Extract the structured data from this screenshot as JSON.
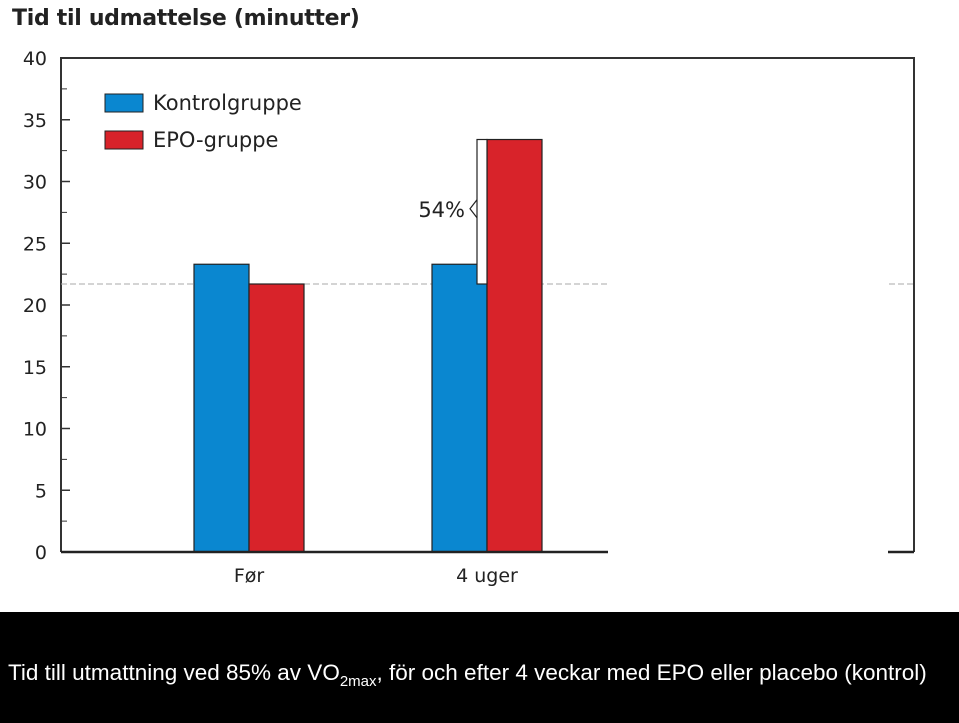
{
  "chart_data": {
    "type": "bar",
    "title": "Tid til udmattelse (minutter)",
    "categories": [
      "Før",
      "4 uger"
    ],
    "series": [
      {
        "name": "Kontrolgruppe",
        "color": "#0a87d0",
        "values": [
          23.3,
          23.3
        ]
      },
      {
        "name": "EPO-gruppe",
        "color": "#d8232a",
        "values": [
          21.7,
          33.4
        ]
      }
    ],
    "ylim": [
      0,
      40
    ],
    "yticks": [
      0,
      5,
      10,
      15,
      20,
      25,
      30,
      35,
      40
    ],
    "legend_position": "top-left",
    "grid": false,
    "reference_line": {
      "value": 21.7,
      "style": "dashed"
    },
    "annotation": {
      "label": "54%",
      "from": 21.7,
      "to": 33.4
    }
  },
  "caption": {
    "before": "Tid till utmattning ved 85% av VO",
    "sub": "2max",
    "after": ", för och efter 4 veckar med EPO eller placebo (kontrol)"
  }
}
